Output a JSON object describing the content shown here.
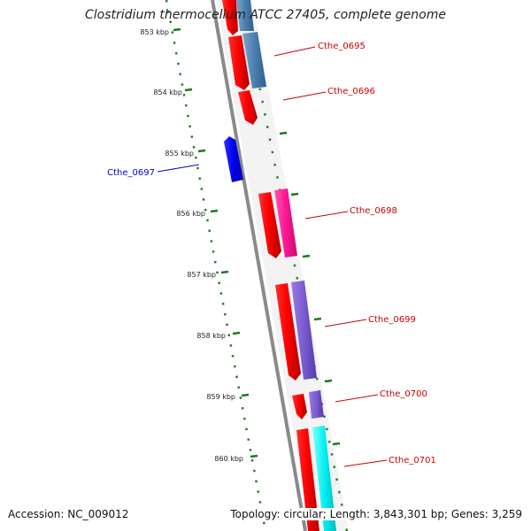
{
  "title": "Clostridium thermocellum ATCC 27405, complete genome",
  "accession": "Accession: NC_009012",
  "summary": "Topology: circular; Length: 3,843,301 bp; Genes: 3,259",
  "colors": {
    "backbone": "#8a8a8a",
    "ruler": "#2e7d32",
    "label_red": "#cc0000",
    "label_blue": "#0000cc"
  },
  "ruler_labels": [
    "853 kbp",
    "854 kbp",
    "855 kbp",
    "856 kbp",
    "857 kbp",
    "858 kbp",
    "859 kbp",
    "860 kbp"
  ],
  "gene_labels": [
    {
      "name": "Cthe_0695",
      "color": "#cc0000"
    },
    {
      "name": "Cthe_0696",
      "color": "#cc0000"
    },
    {
      "name": "Cthe_0697",
      "color": "#0000cc"
    },
    {
      "name": "Cthe_0698",
      "color": "#cc0000"
    },
    {
      "name": "Cthe_0699",
      "color": "#cc0000"
    },
    {
      "name": "Cthe_0700",
      "color": "#cc0000"
    },
    {
      "name": "Cthe_0701",
      "color": "#cc0000"
    }
  ]
}
